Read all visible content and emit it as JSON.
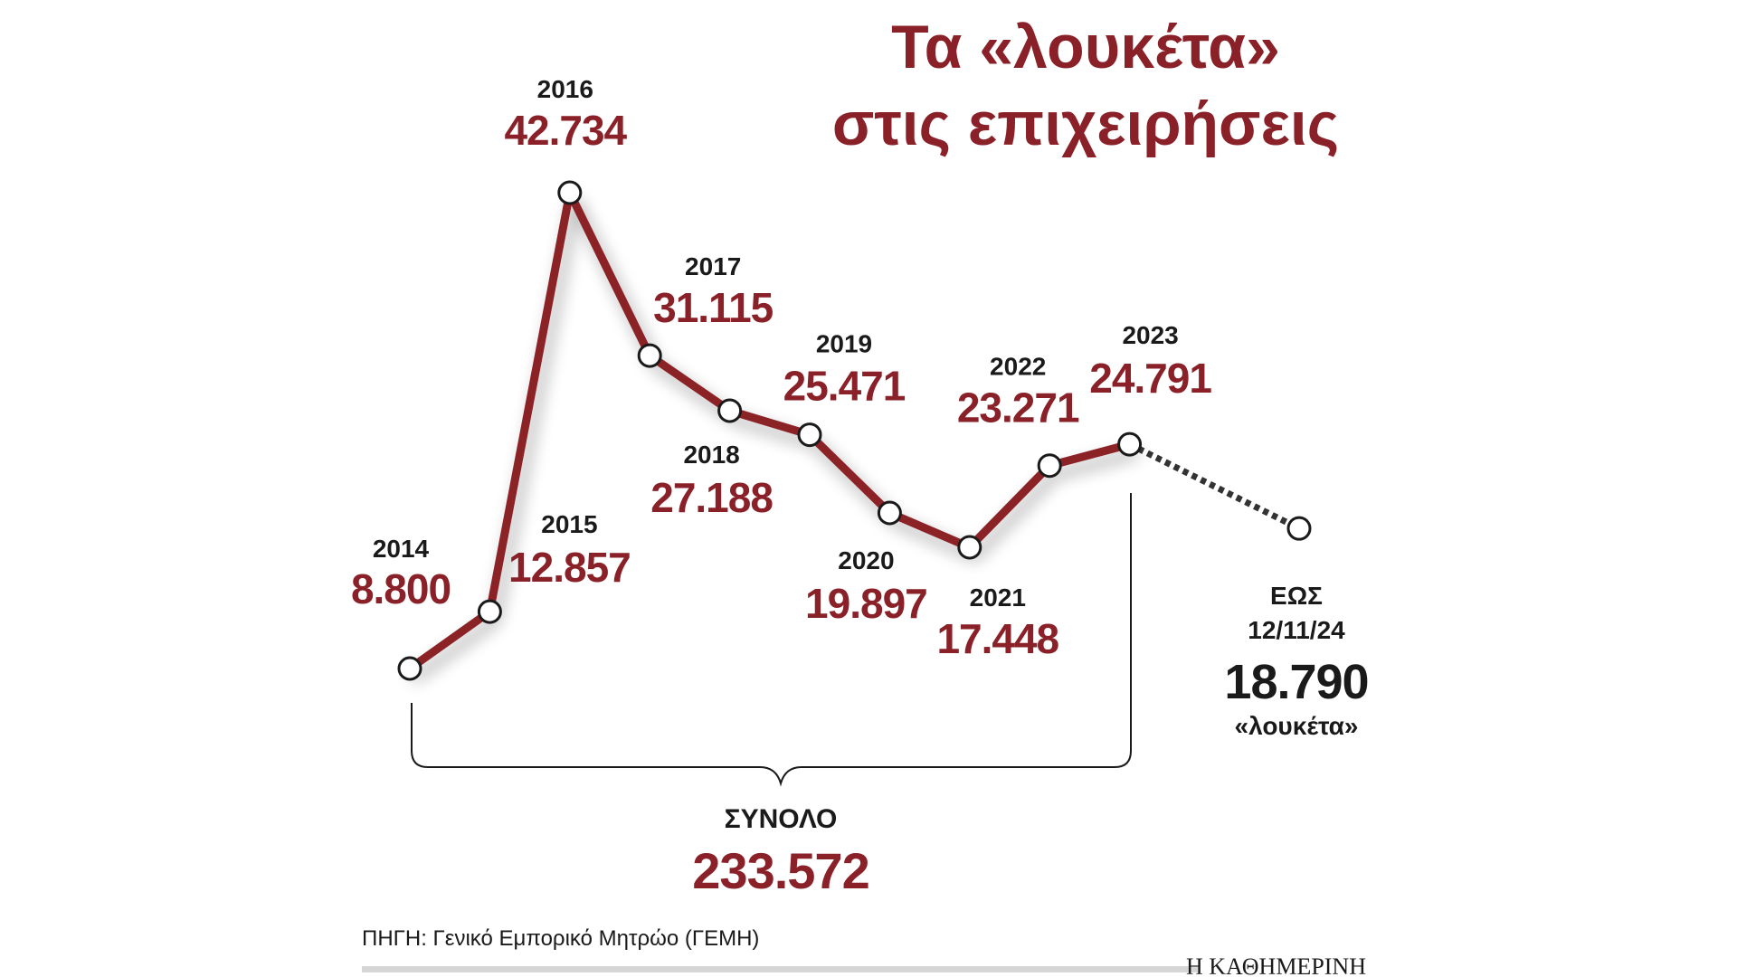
{
  "title": {
    "line1": "Τα «λουκέτα»",
    "line2": "στις επιχειρήσεις"
  },
  "chart_data": {
    "type": "line",
    "x": [
      "2014",
      "2015",
      "2016",
      "2017",
      "2018",
      "2019",
      "2020",
      "2021",
      "2022",
      "2023"
    ],
    "y": [
      8800,
      12857,
      42734,
      31115,
      27188,
      25471,
      19897,
      17448,
      23271,
      24791
    ],
    "value_labels": [
      "8.800",
      "12.857",
      "42.734",
      "31.115",
      "27.188",
      "25.471",
      "19.897",
      "17.448",
      "23.271",
      "24.791"
    ],
    "ytd": {
      "label_line1": "ΕΩΣ",
      "label_line2": "12/11/24",
      "value": 18790,
      "value_label": "18.790",
      "unit": "«λουκέτα»"
    },
    "total": {
      "label": "ΣΥΝΟΛΟ",
      "value": 233572,
      "value_label": "233.572"
    },
    "ylim": [
      0,
      45000
    ],
    "grid": false,
    "line_color": "#8b2128",
    "dotted_color": "#333333",
    "marker_fill": "#ffffff"
  },
  "source": "ΠΗΓΗ: Γενικό Εμπορικό Μητρώο (ΓΕΜΗ)",
  "brand": "Η ΚΑΘΗΜΕΡΙΝΗ"
}
